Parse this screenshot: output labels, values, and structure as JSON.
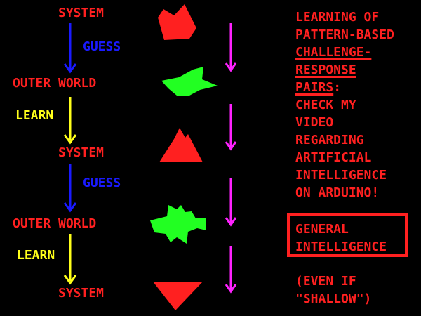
{
  "flow": {
    "system_1": "SYSTEM",
    "guess_1": "GUESS",
    "outer_world_1": "OUTER WORLD",
    "learn_1": "LEARN",
    "system_2": "SYSTEM",
    "guess_2": "GUESS",
    "outer_world_2": "OUTER WORLD",
    "learn_2": "LEARN",
    "system_3": "SYSTEM"
  },
  "notes": {
    "line1": "LEARNING OF",
    "line2": "PATTERN-BASED",
    "line3": "CHALLENGE-",
    "line4": "RESPONSE",
    "line5a": "PAIRS",
    "line5b": ":",
    "line6": "CHECK MY",
    "line7": "VIDEO",
    "line8": "REGARDING",
    "line9": "ARTIFICIAL",
    "line10": "INTELLIGENCE",
    "line11": "ON ARDUINO!"
  },
  "general_intelligence": {
    "line1": "GENERAL",
    "line2": "INTELLIGENCE"
  },
  "shallow": {
    "line1": "(EVEN IF",
    "line2": "\"SHALLOW\")"
  },
  "colors": {
    "background": "#000000",
    "system_red": "#ff2020",
    "guess_blue": "#1a1aff",
    "learn_yellow": "#ffff1a",
    "shape_green": "#22ff22",
    "timeline_magenta": "#ff22ff"
  }
}
